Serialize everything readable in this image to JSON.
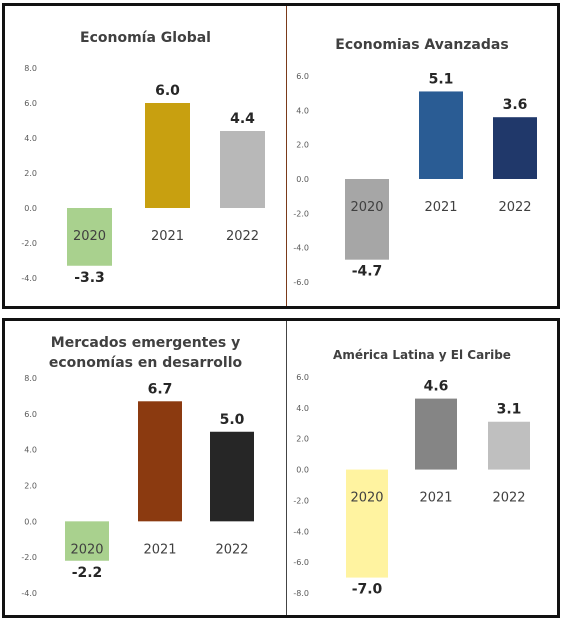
{
  "chart_data": [
    {
      "type": "bar",
      "title": "Economía Global",
      "categories": [
        "2020",
        "2021",
        "2022"
      ],
      "values": [
        -3.3,
        6.0,
        4.4
      ],
      "value_labels": [
        "-3.3",
        "6.0",
        "4.4"
      ],
      "colors": [
        "#a9d18e",
        "#c8a010",
        "#b8b8b8"
      ],
      "ylim": [
        -4.0,
        8.0
      ],
      "yticks": [
        "8.0",
        "6.0",
        "4.0",
        "2.0",
        "0.0",
        "-2.0",
        "-4.0"
      ],
      "grid": false,
      "legend": "none"
    },
    {
      "type": "bar",
      "title": "Economias Avanzadas",
      "categories": [
        "2020",
        "2021",
        "2022"
      ],
      "values": [
        -4.7,
        5.1,
        3.6
      ],
      "value_labels": [
        "-4.7",
        "5.1",
        "3.6"
      ],
      "colors": [
        "#a6a6a6",
        "#2a5c94",
        "#20386a"
      ],
      "ylim": [
        -6.0,
        6.0
      ],
      "yticks": [
        "6.0",
        "4.0",
        "2.0",
        "0.0",
        "-2.0",
        "-4.0",
        "-6.0"
      ],
      "grid": false,
      "legend": "none"
    },
    {
      "type": "bar",
      "title": "Mercados emergentes y economías en desarrollo",
      "categories": [
        "2020",
        "2021",
        "2022"
      ],
      "values": [
        -2.2,
        6.7,
        5.0
      ],
      "value_labels": [
        "-2.2",
        "6.7",
        "5.0"
      ],
      "colors": [
        "#a9d18e",
        "#8b3a10",
        "#262626"
      ],
      "ylim": [
        -4.0,
        8.0
      ],
      "yticks": [
        "8.0",
        "6.0",
        "4.0",
        "2.0",
        "0.0",
        "-2.0",
        "-4.0"
      ],
      "grid": false,
      "legend": "none"
    },
    {
      "type": "bar",
      "title": "América Latina y El Caribe",
      "categories": [
        "2020",
        "2021",
        "2022"
      ],
      "values": [
        -7.0,
        4.6,
        3.1
      ],
      "value_labels": [
        "-7.0",
        "4.6",
        "3.1"
      ],
      "colors": [
        "#fff3a0",
        "#858585",
        "#bfbfbf"
      ],
      "ylim": [
        -8.0,
        6.0
      ],
      "yticks": [
        "6.0",
        "4.0",
        "2.0",
        "0.0",
        "-2.0",
        "-4.0",
        "-6.0",
        "-8.0"
      ],
      "grid": false,
      "legend": "none"
    }
  ]
}
